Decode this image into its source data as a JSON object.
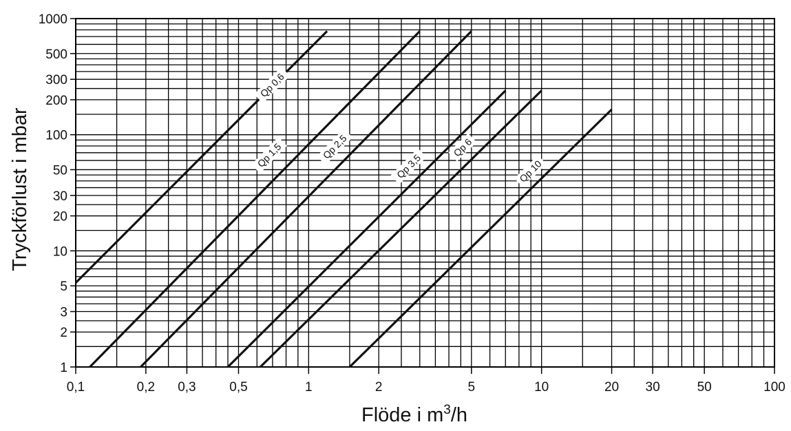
{
  "chart_data": {
    "type": "line",
    "title": "",
    "xlabel": {
      "prefix": "Flöde i m",
      "sup": "3",
      "suffix": "/h"
    },
    "ylabel": "Tryckförlust i mbar",
    "xscale": "log",
    "yscale": "log",
    "xlim": [
      0.1,
      100
    ],
    "ylim": [
      1,
      1000
    ],
    "grid": true,
    "legend": "none",
    "x_ticks": [
      {
        "value": 0.1,
        "label": "0,1"
      },
      {
        "value": 0.2,
        "label": "0,2"
      },
      {
        "value": 0.3,
        "label": "0,3"
      },
      {
        "value": 0.5,
        "label": "0,5"
      },
      {
        "value": 1,
        "label": "1"
      },
      {
        "value": 2,
        "label": "2"
      },
      {
        "value": 5,
        "label": "5"
      },
      {
        "value": 10,
        "label": "10"
      },
      {
        "value": 20,
        "label": "20"
      },
      {
        "value": 30,
        "label": "30"
      },
      {
        "value": 50,
        "label": "50"
      },
      {
        "value": 100,
        "label": "100"
      }
    ],
    "y_ticks": [
      {
        "value": 1,
        "label": "1"
      },
      {
        "value": 2,
        "label": "2"
      },
      {
        "value": 3,
        "label": "3"
      },
      {
        "value": 5,
        "label": "5"
      },
      {
        "value": 10,
        "label": "10"
      },
      {
        "value": 20,
        "label": "20"
      },
      {
        "value": 30,
        "label": "30"
      },
      {
        "value": 50,
        "label": "50"
      },
      {
        "value": 100,
        "label": "100"
      },
      {
        "value": 200,
        "label": "200"
      },
      {
        "value": 300,
        "label": "300"
      },
      {
        "value": 500,
        "label": "500"
      },
      {
        "value": 1000,
        "label": "1000"
      }
    ],
    "series": [
      {
        "name": "Qp 0,6",
        "x": [
          0.1,
          1.2
        ],
        "y": [
          5.3,
          780
        ],
        "label_at": [
          0.7,
          265
        ]
      },
      {
        "name": "Qp 1,5",
        "x": [
          0.115,
          3.0
        ],
        "y": [
          1,
          780
        ],
        "label_at": [
          0.68,
          66
        ]
      },
      {
        "name": "Qp 2,5",
        "x": [
          0.19,
          5.0
        ],
        "y": [
          1,
          780
        ],
        "label_at": [
          1.3,
          78
        ]
      },
      {
        "name": "Qp 3,5",
        "x": [
          0.45,
          7.0
        ],
        "y": [
          1,
          240
        ],
        "label_at": [
          2.7,
          53
        ]
      },
      {
        "name": "Qp 6",
        "x": [
          0.62,
          10.0
        ],
        "y": [
          1,
          240
        ],
        "label_at": [
          4.6,
          77
        ]
      },
      {
        "name": "Qp 10",
        "x": [
          1.5,
          20.0
        ],
        "y": [
          1,
          165
        ],
        "label_at": [
          9.0,
          48
        ]
      }
    ]
  }
}
